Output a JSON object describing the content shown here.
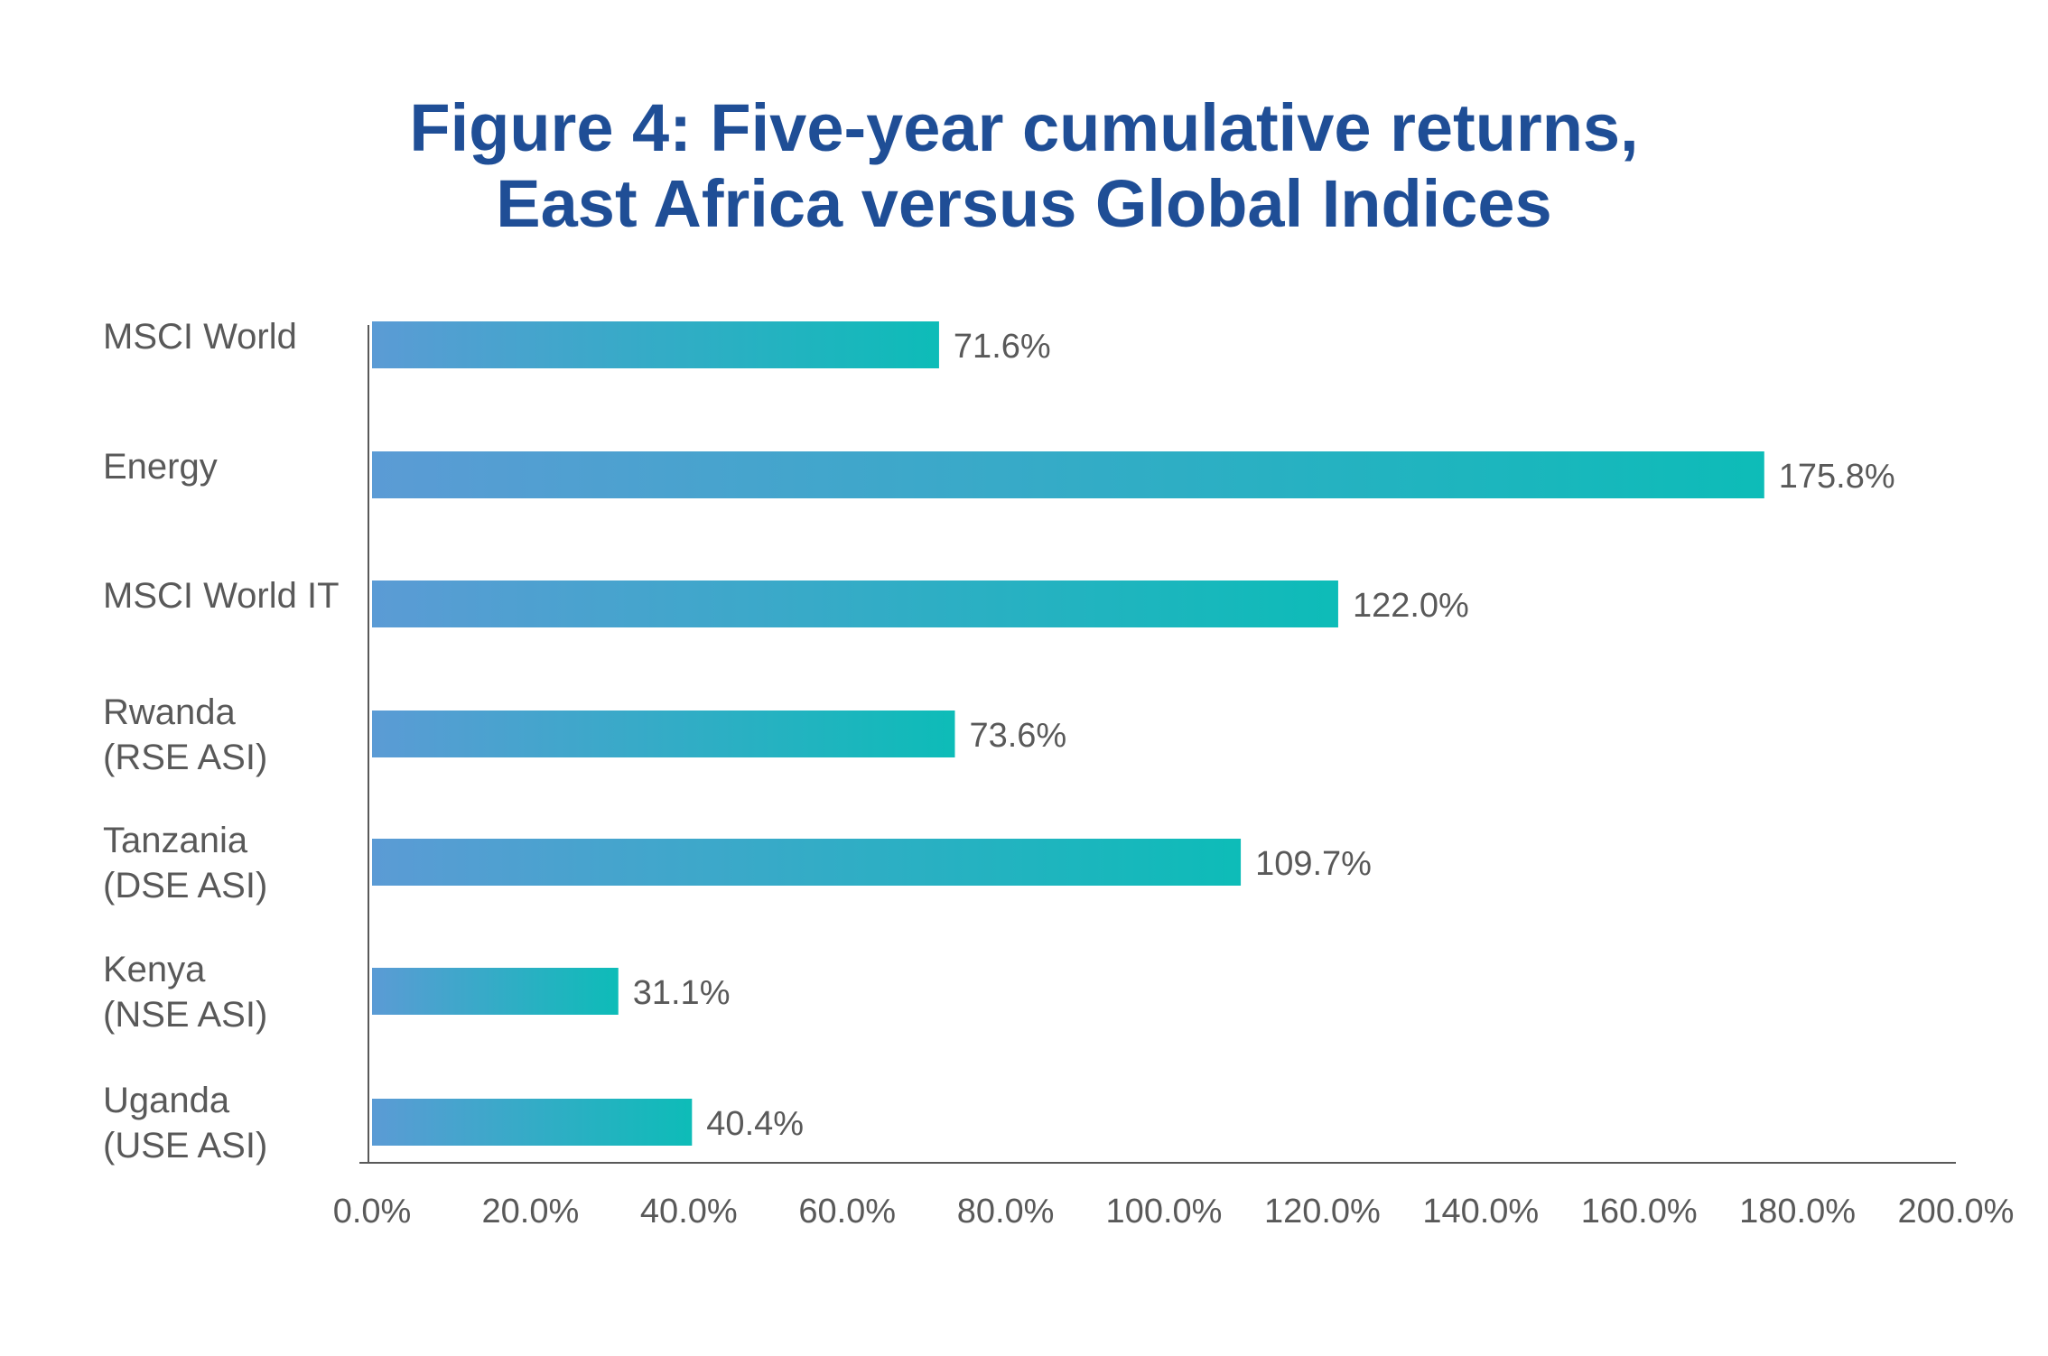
{
  "chart_data": {
    "type": "bar",
    "orientation": "horizontal",
    "title_lines": [
      "Figure 4: Five-year cumulative returns,",
      "East Africa versus Global Indices"
    ],
    "categories": [
      [
        "MSCI World"
      ],
      [
        "Energy"
      ],
      [
        "MSCI World IT"
      ],
      [
        "Rwanda",
        "(RSE ASI)"
      ],
      [
        "Tanzania",
        "(DSE ASI)"
      ],
      [
        "Kenya",
        "(NSE ASI)"
      ],
      [
        "Uganda",
        "(USE ASI)"
      ]
    ],
    "values": [
      71.6,
      175.8,
      122.0,
      73.6,
      109.7,
      31.1,
      40.4
    ],
    "value_labels": [
      "71.6%",
      "175.8%",
      "122.0%",
      "73.6%",
      "109.7%",
      "31.1%",
      "40.4%"
    ],
    "xlim": [
      0,
      200
    ],
    "x_ticks": [
      "0.0%",
      "20.0%",
      "40.0%",
      "60.0%",
      "80.0%",
      "100.0%",
      "120.0%",
      "140.0%",
      "160.0%",
      "180.0%",
      "200.0%"
    ],
    "grid": false,
    "legend": "none",
    "colors": {
      "bar_start": "#5b9bd5",
      "bar_end": "#0dbcb8",
      "title": "#1f4e96",
      "text": "#595959",
      "axis": "#595959"
    }
  }
}
